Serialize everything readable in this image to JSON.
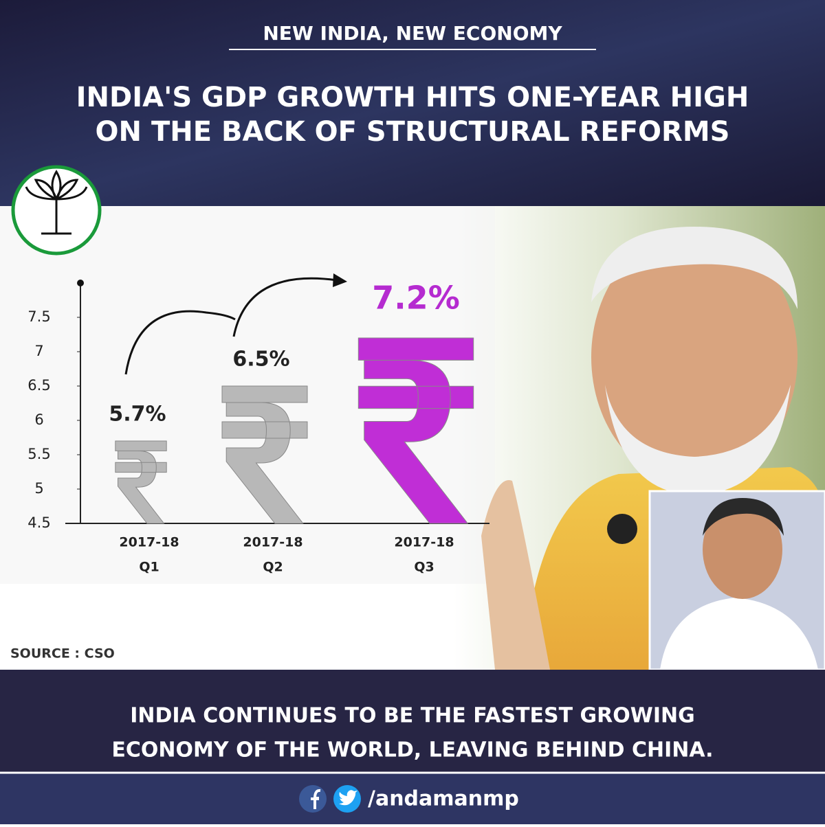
{
  "header": {
    "kicker": "NEW INDIA, NEW ECONOMY",
    "title": [
      "INDIA'S GDP GROWTH HITS ONE-YEAR HIGH",
      "ON THE BACK OF STRUCTURAL REFORMS"
    ]
  },
  "chart_data": {
    "type": "bar",
    "categories": [
      [
        "2017-18",
        "Q1"
      ],
      [
        "2017-18",
        "Q2"
      ],
      [
        "2017-18",
        "Q3"
      ]
    ],
    "values": [
      5.7,
      6.5,
      7.2
    ],
    "value_labels": [
      "5.7%",
      "6.5%",
      "7.2%"
    ],
    "colors": [
      "#b8b8b8",
      "#b8b8b8",
      "#c02ed6"
    ],
    "label_colors": [
      "#222222",
      "#222222",
      "#b52bd0"
    ],
    "ylim": [
      4.5,
      8
    ],
    "yticks": [
      4.5,
      5,
      5.5,
      6,
      6.5,
      7,
      7.5
    ],
    "grid": false,
    "source": "SOURCE : CSO"
  },
  "footer": {
    "message": [
      "INDIA CONTINUES TO BE THE FASTEST GROWING",
      "ECONOMY OF THE WORLD, LEAVING BEHIND CHINA."
    ],
    "handle": "/andamanmp"
  }
}
